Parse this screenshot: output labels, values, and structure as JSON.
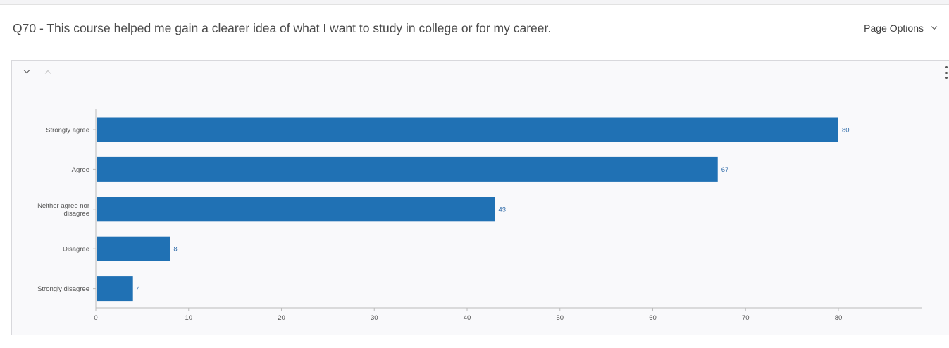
{
  "question": {
    "title": "Q70 - This course helped me gain a clearer idea of what I want to study in college or for my career."
  },
  "toolbar": {
    "page_options_label": "Page Options"
  },
  "colors": {
    "bar": "#2071b4",
    "data_label": "#2e6aa8",
    "axis": "#bbbbbb"
  },
  "chart_data": {
    "type": "bar",
    "orientation": "horizontal",
    "categories": [
      [
        "Strongly agree"
      ],
      [
        "Agree"
      ],
      [
        "Neither agree nor",
        "disagree"
      ],
      [
        "Disagree"
      ],
      [
        "Strongly disagree"
      ]
    ],
    "values": [
      80,
      67,
      43,
      8,
      4
    ],
    "xlim": [
      0,
      89
    ],
    "xticks": [
      0,
      10,
      20,
      30,
      40,
      50,
      60,
      70,
      80
    ],
    "data_labels": true,
    "grid": false
  }
}
